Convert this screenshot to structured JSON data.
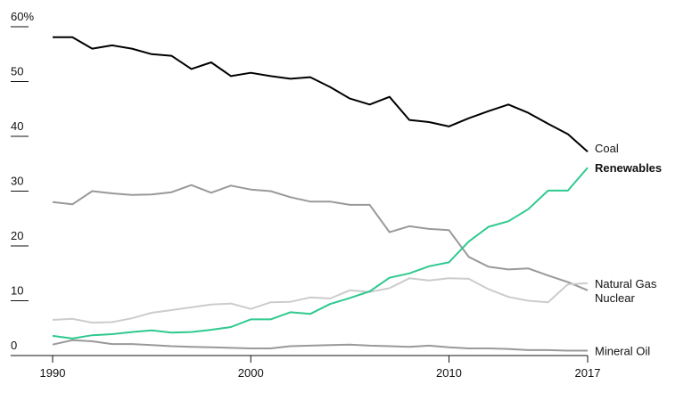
{
  "chart_data": {
    "type": "line",
    "ylim": [
      0,
      60
    ],
    "xlim": [
      1990,
      2017
    ],
    "y_ticks": [
      {
        "value": 0,
        "label": "0"
      },
      {
        "value": 10,
        "label": "10"
      },
      {
        "value": 20,
        "label": "20"
      },
      {
        "value": 30,
        "label": "30"
      },
      {
        "value": 40,
        "label": "40"
      },
      {
        "value": 50,
        "label": "50"
      },
      {
        "value": 60,
        "label": "60%"
      }
    ],
    "x_ticks": [
      {
        "value": 1990,
        "label": "1990"
      },
      {
        "value": 2000,
        "label": "2000"
      },
      {
        "value": 2010,
        "label": "2010"
      },
      {
        "value": 2017,
        "label": "2017"
      }
    ],
    "x": [
      1990,
      1991,
      1992,
      1993,
      1994,
      1995,
      1996,
      1997,
      1998,
      1999,
      2000,
      2001,
      2002,
      2003,
      2004,
      2005,
      2006,
      2007,
      2008,
      2009,
      2010,
      2011,
      2012,
      2013,
      2014,
      2015,
      2016,
      2017
    ],
    "series": [
      {
        "name": "Coal",
        "color": "#000000",
        "bold": false,
        "values": [
          58.1,
          58.1,
          56.0,
          56.6,
          56.0,
          55.0,
          54.7,
          52.3,
          53.5,
          51.0,
          51.6,
          51.0,
          50.5,
          50.8,
          49.0,
          46.9,
          45.8,
          47.2,
          43.0,
          42.6,
          41.8,
          43.3,
          44.6,
          45.8,
          44.3,
          42.3,
          40.4,
          37.2
        ]
      },
      {
        "name": "Renewables",
        "color": "#2ec98e",
        "bold": true,
        "values": [
          3.6,
          3.1,
          3.7,
          3.9,
          4.3,
          4.6,
          4.2,
          4.3,
          4.7,
          5.2,
          6.6,
          6.6,
          7.9,
          7.6,
          9.4,
          10.5,
          11.7,
          14.2,
          15.0,
          16.3,
          17.0,
          20.8,
          23.5,
          24.5,
          26.7,
          30.1,
          30.1,
          34.3
        ]
      },
      {
        "name": "Natural Gas",
        "color": "#cccccc",
        "bold": false,
        "values": [
          6.5,
          6.7,
          6.0,
          6.1,
          6.8,
          7.8,
          8.3,
          8.8,
          9.3,
          9.5,
          8.5,
          9.7,
          9.8,
          10.6,
          10.4,
          11.9,
          11.6,
          12.3,
          14.1,
          13.7,
          14.1,
          14.0,
          12.1,
          10.7,
          10.0,
          9.7,
          13.0,
          13.2
        ]
      },
      {
        "name": "Nuclear",
        "color": "#999999",
        "bold": false,
        "values": [
          28.0,
          27.6,
          30.0,
          29.6,
          29.3,
          29.4,
          29.8,
          31.1,
          29.7,
          31.0,
          30.3,
          30.0,
          28.9,
          28.1,
          28.1,
          27.5,
          27.5,
          22.5,
          23.6,
          23.1,
          22.9,
          18.0,
          16.2,
          15.7,
          15.9,
          14.6,
          13.4,
          11.9
        ]
      },
      {
        "name": "Mineral Oil",
        "color": "#999999",
        "bold": false,
        "values": [
          2.0,
          2.8,
          2.6,
          2.1,
          2.1,
          1.9,
          1.7,
          1.6,
          1.5,
          1.4,
          1.3,
          1.3,
          1.7,
          1.8,
          1.9,
          2.0,
          1.8,
          1.7,
          1.6,
          1.8,
          1.5,
          1.3,
          1.3,
          1.2,
          1.0,
          1.0,
          0.9,
          0.9
        ]
      }
    ]
  }
}
